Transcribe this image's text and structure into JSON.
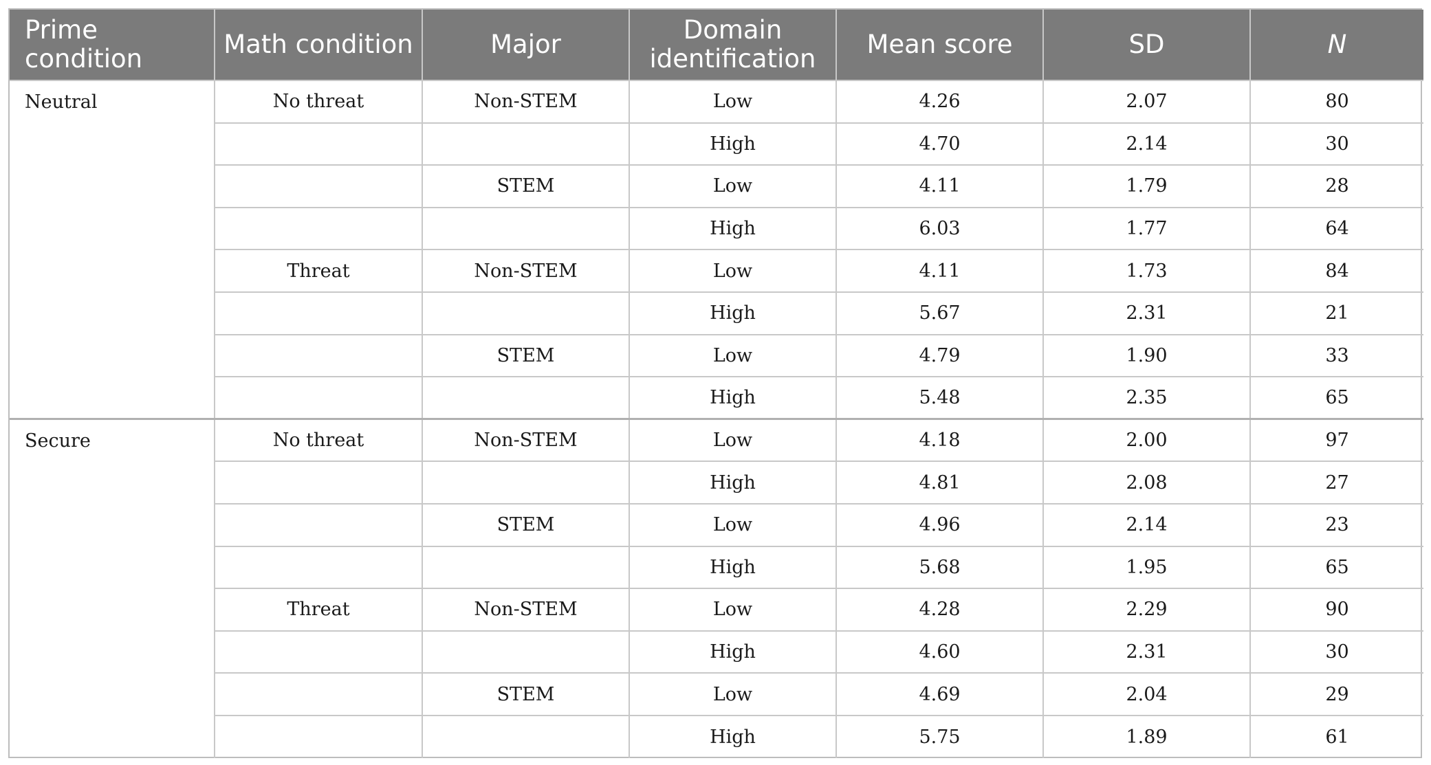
{
  "table": {
    "headers": {
      "prime": "Prime condition",
      "math": "Math condition",
      "major": "Major",
      "domain": "Domain identification",
      "mean": "Mean score",
      "sd": "SD",
      "n": "N"
    },
    "groups": [
      {
        "prime": "Neutral",
        "rows": [
          {
            "math": "No threat",
            "major": "Non-STEM",
            "domain": "Low",
            "mean": "4.26",
            "sd": "2.07",
            "n": "80"
          },
          {
            "math": "",
            "major": "",
            "domain": "High",
            "mean": "4.70",
            "sd": "2.14",
            "n": "30"
          },
          {
            "math": "",
            "major": "STEM",
            "domain": "Low",
            "mean": "4.11",
            "sd": "1.79",
            "n": "28"
          },
          {
            "math": "",
            "major": "",
            "domain": "High",
            "mean": "6.03",
            "sd": "1.77",
            "n": "64"
          },
          {
            "math": "Threat",
            "major": "Non-STEM",
            "domain": "Low",
            "mean": "4.11",
            "sd": "1.73",
            "n": "84"
          },
          {
            "math": "",
            "major": "",
            "domain": "High",
            "mean": "5.67",
            "sd": "2.31",
            "n": "21"
          },
          {
            "math": "",
            "major": "STEM",
            "domain": "Low",
            "mean": "4.79",
            "sd": "1.90",
            "n": "33"
          },
          {
            "math": "",
            "major": "",
            "domain": "High",
            "mean": "5.48",
            "sd": "2.35",
            "n": "65"
          }
        ]
      },
      {
        "prime": "Secure",
        "rows": [
          {
            "math": "No threat",
            "major": "Non-STEM",
            "domain": "Low",
            "mean": "4.18",
            "sd": "2.00",
            "n": "97"
          },
          {
            "math": "",
            "major": "",
            "domain": "High",
            "mean": "4.81",
            "sd": "2.08",
            "n": "27"
          },
          {
            "math": "",
            "major": "STEM",
            "domain": "Low",
            "mean": "4.96",
            "sd": "2.14",
            "n": "23"
          },
          {
            "math": "",
            "major": "",
            "domain": "High",
            "mean": "5.68",
            "sd": "1.95",
            "n": "65"
          },
          {
            "math": "Threat",
            "major": "Non-STEM",
            "domain": "Low",
            "mean": "4.28",
            "sd": "2.29",
            "n": "90"
          },
          {
            "math": "",
            "major": "",
            "domain": "High",
            "mean": "4.60",
            "sd": "2.31",
            "n": "30"
          },
          {
            "math": "",
            "major": "STEM",
            "domain": "Low",
            "mean": "4.69",
            "sd": "2.04",
            "n": "29"
          },
          {
            "math": "",
            "major": "",
            "domain": "High",
            "mean": "5.75",
            "sd": "1.89",
            "n": "61"
          }
        ]
      }
    ]
  }
}
